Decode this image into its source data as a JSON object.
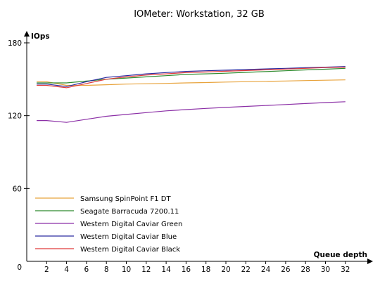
{
  "chart_data": {
    "type": "line",
    "title": "IOMeter: Workstation, 32 GB",
    "xlabel": "Queue depth",
    "ylabel": "IOps",
    "origin_label": "0",
    "x": [
      1,
      2,
      4,
      6,
      8,
      10,
      12,
      14,
      16,
      18,
      20,
      22,
      24,
      26,
      28,
      30,
      32
    ],
    "x_ticks": [
      "2",
      "4",
      "6",
      "8",
      "10",
      "12",
      "14",
      "16",
      "18",
      "20",
      "22",
      "24",
      "26",
      "28",
      "30",
      "32"
    ],
    "y_ticks": [
      "60",
      "120",
      "180"
    ],
    "xlim": [
      0,
      33
    ],
    "ylim": [
      0,
      180
    ],
    "grid": false,
    "legend_position": "bottom-left",
    "series": [
      {
        "name": "Samsung SpinPoint F1 DT",
        "color": "#e8a33c",
        "values": [
          148,
          148,
          145,
          145,
          145.5,
          146,
          146.3,
          146.6,
          147,
          147.3,
          147.7,
          148,
          148.3,
          148.6,
          148.9,
          149.2,
          149.5
        ]
      },
      {
        "name": "Seagate Barracuda 7200.11",
        "color": "#2e8b2e",
        "values": [
          147,
          147,
          147,
          148.5,
          150,
          151,
          152,
          153,
          154,
          154.5,
          155,
          155.7,
          156.3,
          157,
          157.7,
          158.3,
          159
        ]
      },
      {
        "name": "Western Digital Caviar Green",
        "color": "#8b2fa6",
        "values": [
          116,
          116,
          114.5,
          117,
          119.5,
          121,
          122.5,
          124,
          125,
          126,
          126.8,
          127.6,
          128.4,
          129.2,
          130,
          130.8,
          131.5
        ]
      },
      {
        "name": "Western Digital Caviar Blue",
        "color": "#2a2aa0",
        "values": [
          146,
          146,
          144,
          148,
          151.5,
          153,
          154.5,
          155.5,
          156.5,
          157,
          157.5,
          158,
          158.5,
          159,
          159.5,
          160,
          160.5
        ]
      },
      {
        "name": "Western Digital Caviar Black",
        "color": "#e03a3a",
        "values": [
          145,
          145,
          143,
          146.5,
          150,
          152,
          153.5,
          154.5,
          155.5,
          156,
          156.6,
          157.2,
          157.8,
          158.4,
          159,
          159.6,
          160
        ]
      }
    ]
  }
}
